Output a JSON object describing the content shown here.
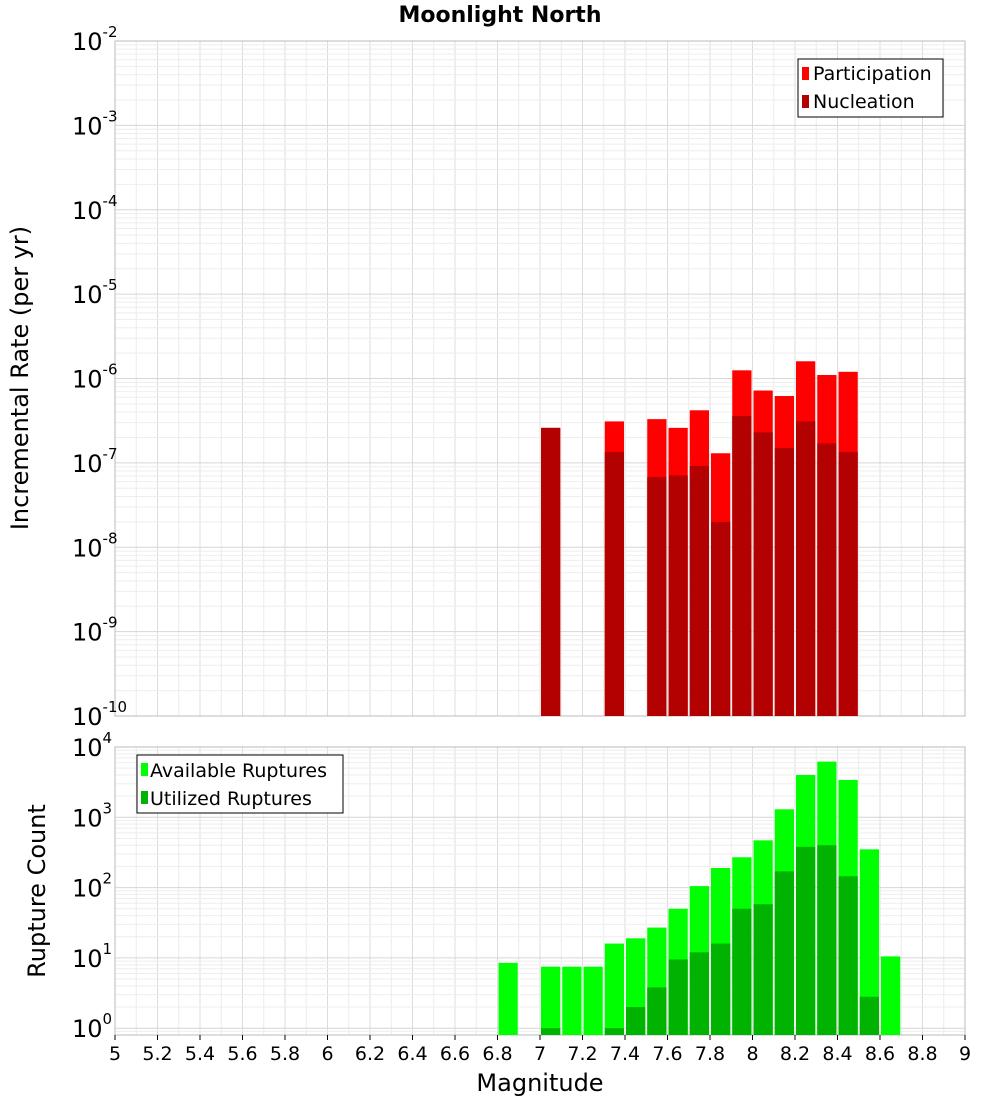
{
  "chart_data": [
    {
      "type": "bar",
      "title": "Moonlight North",
      "xlabel": "",
      "ylabel": "Incremental Rate (per yr)",
      "yscale": "log",
      "ylim": [
        1e-10,
        0.01
      ],
      "xlim": [
        5,
        9
      ],
      "legend": "top-right",
      "y_tick_exponents": [
        -2,
        -3,
        -4,
        -5,
        -6,
        -7,
        -8,
        -9,
        -10
      ],
      "series": [
        {
          "name": "Participation",
          "color": "#ff0000",
          "x": [
            7.05,
            7.35,
            7.55,
            7.65,
            7.75,
            7.85,
            7.95,
            8.05,
            8.15,
            8.25,
            8.35,
            8.45
          ],
          "values": [
            2.6e-07,
            3.1e-07,
            3.3e-07,
            2.6e-07,
            4.2e-07,
            1.3e-07,
            1.25e-06,
            7.2e-07,
            6.2e-07,
            1.6e-06,
            1.1e-06,
            1.2e-06
          ]
        },
        {
          "name": "Nucleation",
          "color": "#b30000",
          "x": [
            7.05,
            7.35,
            7.55,
            7.65,
            7.75,
            7.85,
            7.95,
            8.05,
            8.15,
            8.25,
            8.35,
            8.45
          ],
          "values": [
            2.6e-07,
            1.35e-07,
            6.8e-08,
            7.1e-08,
            9.2e-08,
            2e-08,
            3.6e-07,
            2.3e-07,
            1.5e-07,
            3.1e-07,
            1.7e-07,
            1.35e-07
          ]
        }
      ]
    },
    {
      "type": "bar",
      "title": "",
      "xlabel": "Magnitude",
      "ylabel": "Rupture Count",
      "yscale": "log",
      "ylim": [
        0.8,
        10000
      ],
      "xlim": [
        5,
        9
      ],
      "legend": "top-left",
      "y_tick_exponents": [
        4,
        3,
        2,
        1,
        0
      ],
      "x_ticks": [
        "5",
        "5.2",
        "5.4",
        "5.6",
        "5.8",
        "6",
        "6.2",
        "6.4",
        "6.6",
        "6.8",
        "7",
        "7.2",
        "7.4",
        "7.6",
        "7.8",
        "8",
        "8.2",
        "8.4",
        "8.6",
        "8.8",
        "9"
      ],
      "series": [
        {
          "name": "Available Ruptures",
          "color": "#00ff00",
          "x": [
            6.85,
            7.05,
            7.15,
            7.25,
            7.35,
            7.45,
            7.55,
            7.65,
            7.75,
            7.85,
            7.95,
            8.05,
            8.15,
            8.25,
            8.35,
            8.45,
            8.55,
            8.65
          ],
          "values": [
            8.5,
            7.5,
            7.5,
            7.5,
            16,
            19,
            27,
            50,
            105,
            190,
            270,
            470,
            1300,
            4000,
            6200,
            3400,
            350,
            10.5
          ]
        },
        {
          "name": "Utilized Ruptures",
          "color": "#00b300",
          "x": [
            7.05,
            7.35,
            7.45,
            7.55,
            7.65,
            7.75,
            7.85,
            7.95,
            8.05,
            8.15,
            8.25,
            8.35,
            8.45,
            8.55
          ],
          "values": [
            1,
            1,
            2,
            3.8,
            9.5,
            12,
            16,
            50,
            58,
            170,
            380,
            400,
            145,
            2.8
          ]
        }
      ]
    }
  ]
}
